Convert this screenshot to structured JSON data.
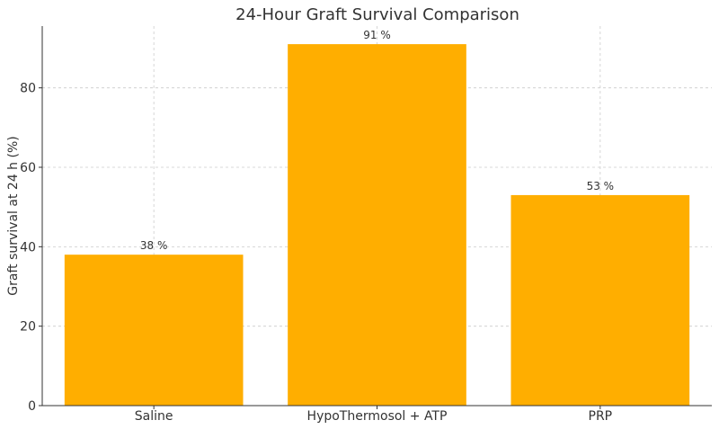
{
  "chart_data": {
    "type": "bar",
    "title": "24-Hour Graft Survival Comparison",
    "xlabel": "",
    "ylabel": "Graft survival at 24 h (%)",
    "categories": [
      "Saline",
      "HypoThermosol + ATP",
      "PRP"
    ],
    "values": [
      38,
      91,
      53
    ],
    "data_labels": [
      "38 %",
      "91 %",
      "53 %"
    ],
    "ylim": [
      0,
      95.55
    ],
    "yticks": [
      0,
      20,
      40,
      60,
      80
    ],
    "grid": true,
    "bar_color": "#ffae00"
  }
}
